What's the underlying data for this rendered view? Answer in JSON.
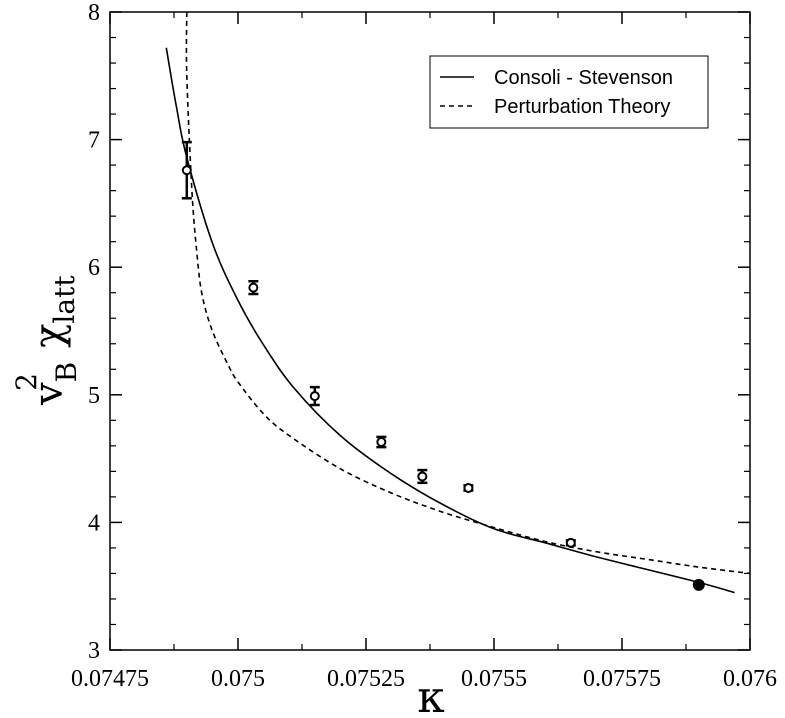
{
  "chart_data": {
    "type": "line",
    "title": "",
    "xlabel": "κ",
    "ylabel": {
      "base": "v",
      "superscript": "2",
      "subscript": "B",
      "symbol": "χ",
      "symbol_subscript": "latt"
    },
    "xlim": [
      0.07475,
      0.076
    ],
    "ylim": [
      3,
      8
    ],
    "x_ticks": [
      0.07475,
      0.075,
      0.07525,
      0.0755,
      0.07575,
      0.076
    ],
    "x_tick_labels": [
      "0.07475",
      "0.075",
      "0.07525",
      "0.0755",
      "0.07575",
      "0.076"
    ],
    "y_ticks": [
      3,
      4,
      5,
      6,
      7,
      8
    ],
    "y_tick_labels": [
      "3",
      "4",
      "5",
      "6",
      "7",
      "8"
    ],
    "grid": false,
    "legend": {
      "position": "top-right",
      "entries": [
        {
          "label": "Consoli - Stevenson",
          "style": "solid"
        },
        {
          "label": "Perturbation Theory",
          "style": "dashed"
        }
      ]
    },
    "series": [
      {
        "name": "Consoli - Stevenson",
        "style": "solid",
        "x": [
          0.07486,
          0.07488,
          0.0749,
          0.07495,
          0.075,
          0.07505,
          0.07511,
          0.0752,
          0.0753,
          0.0754,
          0.0755,
          0.0756,
          0.0757,
          0.0758,
          0.0759,
          0.07597
        ],
        "y": [
          7.72,
          7.25,
          6.86,
          6.19,
          5.74,
          5.39,
          5.05,
          4.68,
          4.38,
          4.14,
          3.95,
          3.84,
          3.73,
          3.63,
          3.53,
          3.45
        ]
      },
      {
        "name": "Perturbation Theory",
        "style": "dashed",
        "x": [
          0.0749,
          0.0749,
          0.07491,
          0.07492,
          0.07493,
          0.07495,
          0.07498,
          0.075,
          0.07505,
          0.0751,
          0.0752,
          0.0753,
          0.0754,
          0.0755,
          0.0756,
          0.0757,
          0.0758,
          0.0759,
          0.076
        ],
        "y": [
          8.0,
          7.5,
          6.6,
          6.1,
          5.78,
          5.5,
          5.24,
          5.1,
          4.85,
          4.68,
          4.42,
          4.23,
          4.08,
          3.96,
          3.85,
          3.77,
          3.71,
          3.65,
          3.6
        ]
      }
    ],
    "points": [
      {
        "x": 0.0749,
        "y": 6.76,
        "err": 0.22,
        "filled": false
      },
      {
        "x": 0.07503,
        "y": 5.84,
        "err": 0.05,
        "filled": false
      },
      {
        "x": 0.07515,
        "y": 4.99,
        "err": 0.07,
        "filled": false
      },
      {
        "x": 0.07528,
        "y": 4.63,
        "err": 0.04,
        "filled": false
      },
      {
        "x": 0.07536,
        "y": 4.36,
        "err": 0.05,
        "filled": false
      },
      {
        "x": 0.07545,
        "y": 4.27,
        "err": 0.02,
        "filled": false
      },
      {
        "x": 0.07565,
        "y": 3.84,
        "err": 0.02,
        "filled": false
      },
      {
        "x": 0.0759,
        "y": 3.51,
        "err": 0.0,
        "filled": true
      }
    ]
  }
}
